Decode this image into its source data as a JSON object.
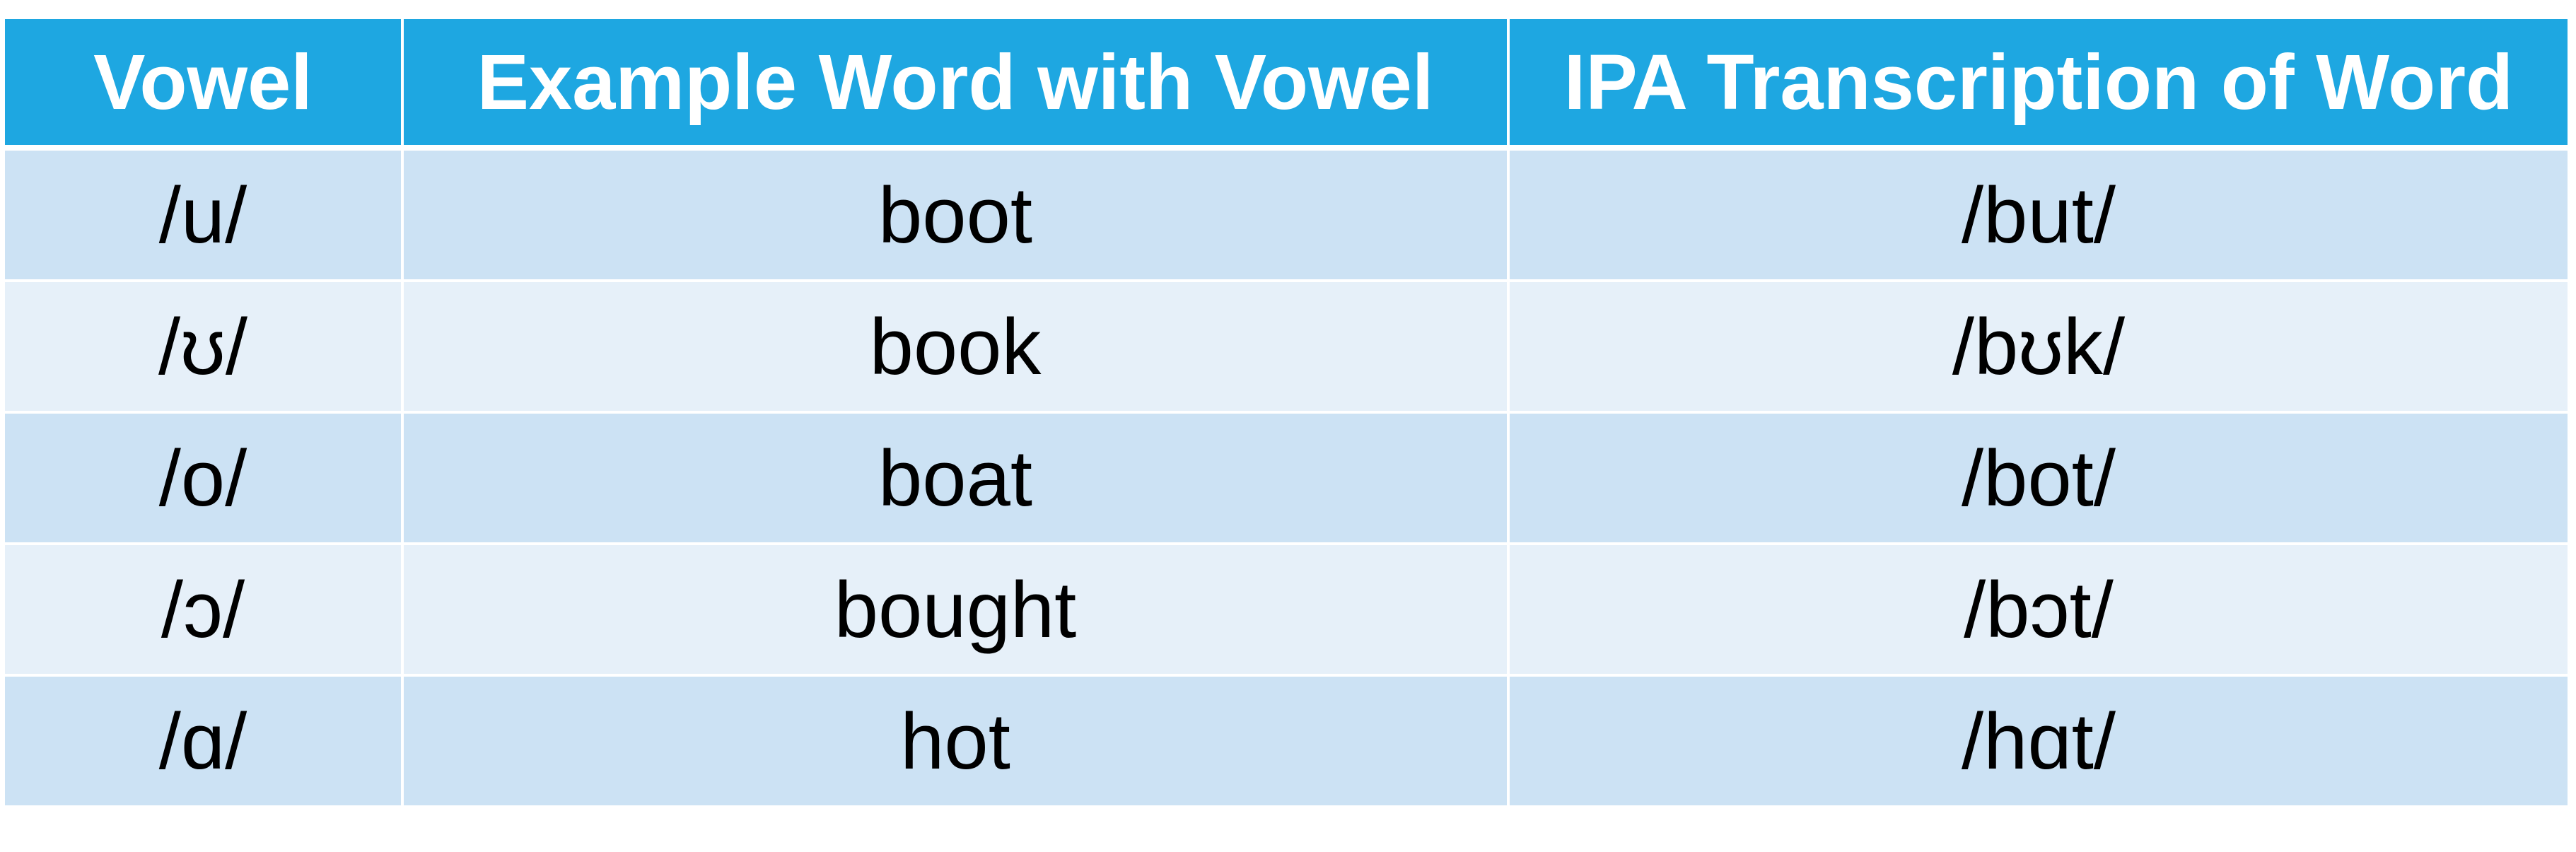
{
  "table": {
    "header": [
      "Vowel",
      "Example Word with Vowel",
      "IPA Transcription of Word"
    ],
    "rows": [
      [
        "/u/",
        "boot",
        "/but/"
      ],
      [
        "/ʊ/",
        "book",
        "/bʊk/"
      ],
      [
        "/o/",
        "boat",
        "/bot/"
      ],
      [
        "/ɔ/",
        "bought",
        "/bɔt/"
      ],
      [
        "/ɑ/",
        "hot",
        "/hɑt/"
      ]
    ]
  }
}
